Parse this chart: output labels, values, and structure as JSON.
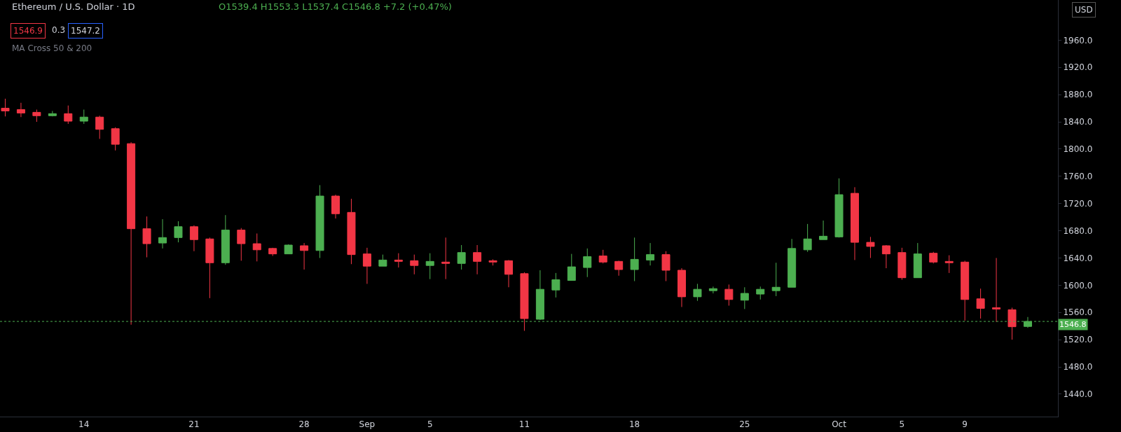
{
  "chart_data": {
    "type": "candlestick",
    "title": "Ethereum / U.S. Dollar · 1D",
    "subtitle": "O1539.4 H1553.3 L1537.4 C1546.8 +7.2 (+0.47%)",
    "annotations": [
      "1546.9",
      "0.3",
      "1547.2",
      "MA Cross 50 & 200",
      "USD"
    ],
    "x": [
      "--08-09",
      "--08-10",
      "--08-11",
      "--08-12",
      "--08-13",
      "--08-14",
      "--08-15",
      "--08-16",
      "--08-17",
      "--08-18",
      "--08-19",
      "--08-20",
      "--08-21",
      "--08-22",
      "--08-23",
      "--08-24",
      "--08-25",
      "--08-26",
      "--08-27",
      "--08-28",
      "--08-29",
      "--08-30",
      "--08-31",
      "--09-01",
      "--09-02",
      "--09-03",
      "--09-04",
      "--09-05",
      "--09-06",
      "--09-07",
      "--09-08",
      "--09-09",
      "--09-10",
      "--09-11",
      "--09-12",
      "--09-13",
      "--09-14",
      "--09-15",
      "--09-16",
      "--09-17",
      "--09-18",
      "--09-19",
      "--09-20",
      "--09-21",
      "--09-22",
      "--09-23",
      "--09-24",
      "--09-25",
      "--09-26",
      "--09-27",
      "--09-28",
      "--09-29",
      "--09-30",
      "--10-01",
      "--10-02",
      "--10-03",
      "--10-04",
      "--10-05",
      "--10-06",
      "--10-07",
      "--10-08",
      "--10-09",
      "--10-10",
      "--10-11",
      "--10-12",
      "--10-13"
    ],
    "ohlc": [
      [
        1860,
        1874,
        1848,
        1856
      ],
      [
        1858,
        1868,
        1847,
        1853
      ],
      [
        1854,
        1858,
        1840,
        1849
      ],
      [
        1849,
        1856,
        1848,
        1852
      ],
      [
        1852,
        1864,
        1837,
        1841
      ],
      [
        1841,
        1858,
        1837,
        1847
      ],
      [
        1847,
        1849,
        1815,
        1829
      ],
      [
        1830,
        1832,
        1798,
        1807
      ],
      [
        1808,
        1810,
        1542,
        1683
      ],
      [
        1683,
        1701,
        1641,
        1661
      ],
      [
        1662,
        1697,
        1654,
        1670
      ],
      [
        1670,
        1694,
        1663,
        1686
      ],
      [
        1686,
        1688,
        1650,
        1667
      ],
      [
        1668,
        1670,
        1581,
        1633
      ],
      [
        1633,
        1703,
        1630,
        1681
      ],
      [
        1681,
        1684,
        1636,
        1661
      ],
      [
        1661,
        1676,
        1635,
        1652
      ],
      [
        1654,
        1655,
        1643,
        1646
      ],
      [
        1646,
        1660,
        1646,
        1659
      ],
      [
        1658,
        1662,
        1623,
        1651
      ],
      [
        1651,
        1747,
        1640,
        1731
      ],
      [
        1731,
        1733,
        1698,
        1705
      ],
      [
        1707,
        1727,
        1631,
        1645
      ],
      [
        1646,
        1655,
        1602,
        1628
      ],
      [
        1628,
        1645,
        1628,
        1637
      ],
      [
        1637,
        1647,
        1626,
        1635
      ],
      [
        1636,
        1645,
        1616,
        1629
      ],
      [
        1629,
        1647,
        1609,
        1635
      ],
      [
        1634,
        1670,
        1609,
        1632
      ],
      [
        1632,
        1659,
        1623,
        1648
      ],
      [
        1648,
        1659,
        1616,
        1635
      ],
      [
        1636,
        1638,
        1629,
        1634
      ],
      [
        1636,
        1637,
        1597,
        1616
      ],
      [
        1617,
        1619,
        1533,
        1551
      ],
      [
        1550,
        1622,
        1549,
        1594
      ],
      [
        1593,
        1618,
        1582,
        1608
      ],
      [
        1607,
        1646,
        1607,
        1627
      ],
      [
        1626,
        1654,
        1612,
        1642
      ],
      [
        1643,
        1652,
        1632,
        1634
      ],
      [
        1635,
        1636,
        1614,
        1623
      ],
      [
        1623,
        1670,
        1606,
        1638
      ],
      [
        1637,
        1662,
        1629,
        1645
      ],
      [
        1645,
        1650,
        1606,
        1622
      ],
      [
        1622,
        1625,
        1568,
        1583
      ],
      [
        1583,
        1602,
        1577,
        1594
      ],
      [
        1592,
        1598,
        1588,
        1595
      ],
      [
        1594,
        1601,
        1570,
        1579
      ],
      [
        1578,
        1597,
        1565,
        1588
      ],
      [
        1587,
        1598,
        1579,
        1594
      ],
      [
        1592,
        1633,
        1584,
        1597
      ],
      [
        1597,
        1668,
        1597,
        1654
      ],
      [
        1652,
        1690,
        1649,
        1668
      ],
      [
        1667,
        1695,
        1667,
        1672
      ],
      [
        1671,
        1757,
        1670,
        1733
      ],
      [
        1735,
        1744,
        1637,
        1663
      ],
      [
        1663,
        1671,
        1640,
        1657
      ],
      [
        1658,
        1659,
        1625,
        1646
      ],
      [
        1648,
        1655,
        1608,
        1611
      ],
      [
        1611,
        1662,
        1611,
        1646
      ],
      [
        1647,
        1649,
        1632,
        1634
      ],
      [
        1635,
        1644,
        1618,
        1633
      ],
      [
        1634,
        1636,
        1548,
        1579
      ],
      [
        1580,
        1595,
        1551,
        1566
      ],
      [
        1567,
        1640,
        1546,
        1565
      ],
      [
        1564,
        1567,
        1520,
        1539
      ],
      [
        1539.4,
        1553.3,
        1537.4,
        1546.8
      ]
    ],
    "colors": [
      "#f23645",
      "#f23645",
      "#f23645",
      "#4caf50",
      "#f23645",
      "#4caf50",
      "#f23645",
      "#f23645",
      "#f23645",
      "#f23645",
      "#4caf50",
      "#4caf50",
      "#f23645",
      "#f23645",
      "#4caf50",
      "#f23645",
      "#f23645",
      "#f23645",
      "#4caf50",
      "#f23645",
      "#4caf50",
      "#f23645",
      "#f23645",
      "#f23645",
      "#4caf50",
      "#f23645",
      "#f23645",
      "#4caf50",
      "#f23645",
      "#4caf50",
      "#f23645",
      "#f23645",
      "#f23645",
      "#f23645",
      "#4caf50",
      "#4caf50",
      "#4caf50",
      "#4caf50",
      "#f23645",
      "#f23645",
      "#4caf50",
      "#4caf50",
      "#f23645",
      "#f23645",
      "#4caf50",
      "#4caf50",
      "#f23645",
      "#4caf50",
      "#4caf50",
      "#4caf50",
      "#4caf50",
      "#4caf50",
      "#4caf50",
      "#4caf50",
      "#f23645",
      "#f23645",
      "#f23645",
      "#f23645",
      "#4caf50",
      "#f23645",
      "#f23645",
      "#f23645",
      "#f23645",
      "#f23645",
      "#f23645",
      "#4caf50"
    ],
    "xlim": [
      "--08-08T16:00",
      "--10-14T22:00"
    ],
    "xticks": [
      {
        "value": "--08-14",
        "label": "14"
      },
      {
        "value": "--08-21",
        "label": "21"
      },
      {
        "value": "--08-28",
        "label": "28"
      },
      {
        "value": "--09-01",
        "label": "Sep"
      },
      {
        "value": "--09-05",
        "label": "5"
      },
      {
        "value": "--09-11",
        "label": "11"
      },
      {
        "value": "--09-18",
        "label": "18"
      },
      {
        "value": "--09-25",
        "label": "25"
      },
      {
        "value": "--10-01",
        "label": "Oct"
      },
      {
        "value": "--10-05",
        "label": "5"
      },
      {
        "value": "--10-09",
        "label": "9"
      }
    ],
    "ylim": [
      1407,
      2019
    ],
    "yticks": [
      {
        "value": 1440,
        "label": "1440.0"
      },
      {
        "value": 1480,
        "label": "1480.0"
      },
      {
        "value": 1520,
        "label": "1520.0"
      },
      {
        "value": 1560,
        "label": "1560.0"
      },
      {
        "value": 1600,
        "label": "1600.0"
      },
      {
        "value": 1640,
        "label": "1640.0"
      },
      {
        "value": 1680,
        "label": "1680.0"
      },
      {
        "value": 1720,
        "label": "1720.0"
      },
      {
        "value": 1760,
        "label": "1760.0"
      },
      {
        "value": 1800,
        "label": "1800.0"
      },
      {
        "value": 1840,
        "label": "1840.0"
      },
      {
        "value": 1880,
        "label": "1880.0"
      },
      {
        "value": 1920,
        "label": "1920.0"
      },
      {
        "value": 1960,
        "label": "1960.0"
      }
    ],
    "ref_lines": [
      {
        "axis": "y",
        "value": 1546.8,
        "label": "1546.8",
        "color": "#4caf50",
        "line_style": "dotted"
      }
    ],
    "grid": false
  }
}
